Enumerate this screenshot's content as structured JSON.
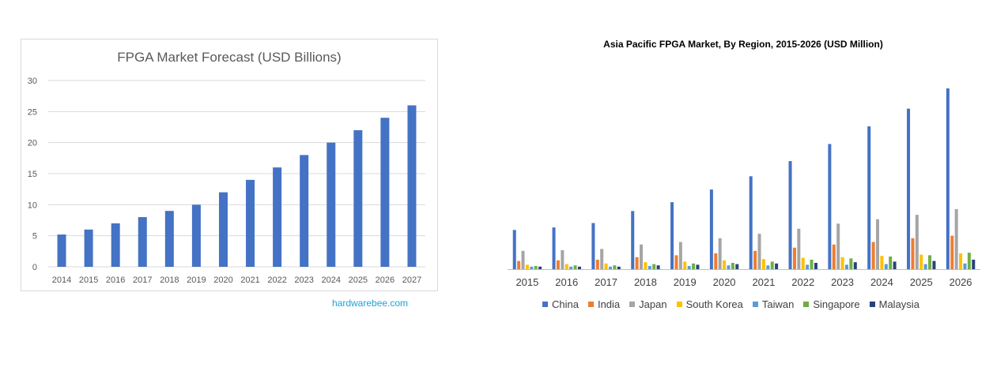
{
  "colors": {
    "left_bar": "#4472c4",
    "grid": "#d9d9d9",
    "axis_text": "#595959",
    "watermark": "#1aa3d9"
  },
  "watermark": "hardwarebee.com",
  "chart_data": [
    {
      "type": "bar",
      "title": "FPGA Market Forecast (USD Billions)",
      "xlabel": "",
      "ylabel": "",
      "categories": [
        "2014",
        "2015",
        "2016",
        "2017",
        "2018",
        "2019",
        "2020",
        "2021",
        "2022",
        "2023",
        "2024",
        "2025",
        "2026",
        "2027"
      ],
      "values": [
        5.2,
        6,
        7,
        8,
        9,
        10,
        12,
        14,
        16,
        18,
        20,
        22,
        24,
        26
      ],
      "ylim": [
        0,
        30
      ],
      "yticks": [
        0,
        5,
        10,
        15,
        20,
        25,
        30
      ],
      "grid": true,
      "legend": "none"
    },
    {
      "type": "bar",
      "title": "Asia Pacific FPGA Market, By Region, 2015-2026  (USD  Million)",
      "xlabel": "",
      "ylabel": "",
      "categories": [
        "2015",
        "2016",
        "2017",
        "2018",
        "2019",
        "2020",
        "2021",
        "2022",
        "2023",
        "2024",
        "2025",
        "2026"
      ],
      "grid": false,
      "legend": "bottom",
      "series": [
        {
          "name": "China",
          "color": "#4472c4",
          "values": [
            6.2,
            6.6,
            7.3,
            9.2,
            10.6,
            12.6,
            14.7,
            17.1,
            19.8,
            22.6,
            25.4,
            28.6
          ]
        },
        {
          "name": "India",
          "color": "#ed7d31",
          "values": [
            1.3,
            1.4,
            1.5,
            1.9,
            2.2,
            2.5,
            2.9,
            3.4,
            3.9,
            4.3,
            4.9,
            5.3
          ]
        },
        {
          "name": "Japan",
          "color": "#a5a5a5",
          "values": [
            2.9,
            3.0,
            3.2,
            3.9,
            4.3,
            4.9,
            5.6,
            6.4,
            7.2,
            7.9,
            8.6,
            9.5
          ]
        },
        {
          "name": "South Korea",
          "color": "#ffc000",
          "values": [
            0.7,
            0.8,
            0.9,
            1.1,
            1.2,
            1.4,
            1.6,
            1.8,
            1.9,
            2.1,
            2.3,
            2.5
          ]
        },
        {
          "name": "Taiwan",
          "color": "#5b9bd5",
          "values": [
            0.4,
            0.4,
            0.4,
            0.5,
            0.5,
            0.6,
            0.6,
            0.7,
            0.7,
            0.8,
            0.8,
            0.9
          ]
        },
        {
          "name": "Singapore",
          "color": "#70ad47",
          "values": [
            0.5,
            0.6,
            0.6,
            0.8,
            0.9,
            1.0,
            1.2,
            1.5,
            1.7,
            2.0,
            2.2,
            2.6
          ]
        },
        {
          "name": "Malaysia",
          "color": "#264478",
          "values": [
            0.4,
            0.4,
            0.4,
            0.6,
            0.7,
            0.8,
            0.9,
            1.0,
            1.1,
            1.2,
            1.3,
            1.5
          ]
        }
      ]
    }
  ]
}
